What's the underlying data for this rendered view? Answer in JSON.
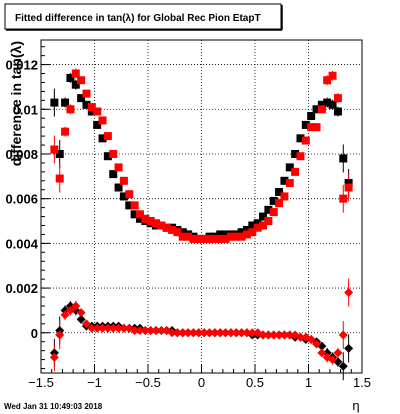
{
  "chart_data": {
    "type": "scatter",
    "title": "Fitted difference in tan(λ) for Global Rec Pion EtapT",
    "xlabel": "η",
    "ylabel": "difference in tan(λ)",
    "xlim": [
      -1.5,
      1.5
    ],
    "ylim": [
      -0.0018,
      0.0131
    ],
    "grid": true,
    "x_ticks": [
      -1.5,
      -1,
      -0.5,
      0,
      0.5,
      1,
      1.5
    ],
    "x_tick_labels": [
      "−1.5",
      "−1",
      "−0.5",
      "0",
      "0.5",
      "1",
      "1.5"
    ],
    "y_ticks": [
      0,
      0.002,
      0.004,
      0.006,
      0.008,
      0.01,
      0.012
    ],
    "y_tick_labels": [
      "0",
      "0.002",
      "0.004",
      "0.006",
      "0.008",
      "0.01",
      "0.012"
    ],
    "timestamp": "Wed Jan 31 10:49:03 2018",
    "colors": {
      "series_black": "#000000",
      "series_red": "#ff0000"
    },
    "series": [
      {
        "color": "#000000",
        "marker": "square",
        "points": [
          [
            -1.375,
            0.0103
          ],
          [
            -1.325,
            0.008
          ],
          [
            -1.275,
            0.0103
          ],
          [
            -1.225,
            0.0114
          ],
          [
            -1.175,
            0.0111
          ],
          [
            -1.125,
            0.0105
          ],
          [
            -1.075,
            0.0102
          ],
          [
            -1.025,
            0.0099
          ],
          [
            -0.975,
            0.0093
          ],
          [
            -0.925,
            0.0087
          ],
          [
            -0.875,
            0.0079
          ],
          [
            -0.825,
            0.0071
          ],
          [
            -0.775,
            0.0065
          ],
          [
            -0.725,
            0.0061
          ],
          [
            -0.675,
            0.0057
          ],
          [
            -0.625,
            0.0053
          ],
          [
            -0.575,
            0.0051
          ],
          [
            -0.525,
            0.005
          ],
          [
            -0.475,
            0.0049
          ],
          [
            -0.425,
            0.0048
          ],
          [
            -0.375,
            0.0048
          ],
          [
            -0.325,
            0.0047
          ],
          [
            -0.275,
            0.0047
          ],
          [
            -0.225,
            0.0046
          ],
          [
            -0.175,
            0.0045
          ],
          [
            -0.125,
            0.0044
          ],
          [
            -0.075,
            0.0043
          ],
          [
            -0.025,
            0.0042
          ],
          [
            0.025,
            0.0042
          ],
          [
            0.075,
            0.0043
          ],
          [
            0.125,
            0.0043
          ],
          [
            0.175,
            0.0044
          ],
          [
            0.225,
            0.0044
          ],
          [
            0.275,
            0.0044
          ],
          [
            0.325,
            0.0044
          ],
          [
            0.375,
            0.0045
          ],
          [
            0.425,
            0.0046
          ],
          [
            0.475,
            0.0048
          ],
          [
            0.525,
            0.0049
          ],
          [
            0.575,
            0.0052
          ],
          [
            0.625,
            0.0055
          ],
          [
            0.675,
            0.0059
          ],
          [
            0.725,
            0.0063
          ],
          [
            0.775,
            0.0068
          ],
          [
            0.825,
            0.0074
          ],
          [
            0.875,
            0.008
          ],
          [
            0.925,
            0.0087
          ],
          [
            0.975,
            0.0093
          ],
          [
            1.025,
            0.0097
          ],
          [
            1.075,
            0.01
          ],
          [
            1.125,
            0.0102
          ],
          [
            1.175,
            0.0103
          ],
          [
            1.225,
            0.0102
          ],
          [
            1.275,
            0.0099
          ],
          [
            1.325,
            0.0078
          ],
          [
            1.375,
            0.0067
          ]
        ]
      },
      {
        "color": "#ff0000",
        "marker": "square",
        "points": [
          [
            -1.375,
            0.0082
          ],
          [
            -1.325,
            0.0069
          ],
          [
            -1.275,
            0.009
          ],
          [
            -1.225,
            0.01
          ],
          [
            -1.175,
            0.0116
          ],
          [
            -1.125,
            0.0113
          ],
          [
            -1.075,
            0.0107
          ],
          [
            -1.025,
            0.0101
          ],
          [
            -0.975,
            0.0099
          ],
          [
            -0.925,
            0.0095
          ],
          [
            -0.875,
            0.0088
          ],
          [
            -0.825,
            0.008
          ],
          [
            -0.775,
            0.0074
          ],
          [
            -0.725,
            0.0068
          ],
          [
            -0.675,
            0.0062
          ],
          [
            -0.625,
            0.0057
          ],
          [
            -0.575,
            0.0053
          ],
          [
            -0.525,
            0.0051
          ],
          [
            -0.475,
            0.005
          ],
          [
            -0.425,
            0.0049
          ],
          [
            -0.375,
            0.0048
          ],
          [
            -0.325,
            0.0047
          ],
          [
            -0.275,
            0.0046
          ],
          [
            -0.225,
            0.0045
          ],
          [
            -0.175,
            0.0043
          ],
          [
            -0.125,
            0.0043
          ],
          [
            -0.075,
            0.0042
          ],
          [
            -0.025,
            0.0042
          ],
          [
            0.025,
            0.0042
          ],
          [
            0.075,
            0.0042
          ],
          [
            0.125,
            0.0042
          ],
          [
            0.175,
            0.0042
          ],
          [
            0.225,
            0.0042
          ],
          [
            0.275,
            0.0043
          ],
          [
            0.325,
            0.0043
          ],
          [
            0.375,
            0.0043
          ],
          [
            0.425,
            0.0044
          ],
          [
            0.475,
            0.0045
          ],
          [
            0.525,
            0.0047
          ],
          [
            0.575,
            0.0048
          ],
          [
            0.625,
            0.005
          ],
          [
            0.675,
            0.0054
          ],
          [
            0.725,
            0.0058
          ],
          [
            0.775,
            0.0061
          ],
          [
            0.825,
            0.0067
          ],
          [
            0.875,
            0.0072
          ],
          [
            0.925,
            0.0079
          ],
          [
            0.975,
            0.0086
          ],
          [
            1.025,
            0.0092
          ],
          [
            1.075,
            0.0092
          ],
          [
            1.125,
            0.01
          ],
          [
            1.175,
            0.0113
          ],
          [
            1.225,
            0.0115
          ],
          [
            1.275,
            0.0105
          ],
          [
            1.325,
            0.006
          ],
          [
            1.375,
            0.0065
          ]
        ]
      },
      {
        "color": "#000000",
        "marker": "diamond",
        "points": [
          [
            -1.375,
            -0.0009
          ],
          [
            -1.325,
            0.0001
          ],
          [
            -1.275,
            0.001
          ],
          [
            -1.225,
            0.0012
          ],
          [
            -1.175,
            0.001
          ],
          [
            -1.125,
            0.0006
          ],
          [
            -1.075,
            0.0003
          ],
          [
            -1.025,
            0.0003
          ],
          [
            -0.975,
            0.0003
          ],
          [
            -0.925,
            0.0003
          ],
          [
            -0.875,
            0.0003
          ],
          [
            -0.825,
            0.0003
          ],
          [
            -0.775,
            0.0003
          ],
          [
            -0.725,
            0.0002
          ],
          [
            -0.675,
            0.0002
          ],
          [
            -0.625,
            0.0002
          ],
          [
            -0.575,
            0.0002
          ],
          [
            -0.525,
            0.0001
          ],
          [
            -0.475,
            0.0001
          ],
          [
            -0.425,
            0.0001
          ],
          [
            -0.375,
            0.0001
          ],
          [
            -0.325,
            0.0001
          ],
          [
            -0.275,
            0.0001
          ],
          [
            -0.225,
            0.0
          ],
          [
            -0.175,
            0.0
          ],
          [
            -0.125,
            0.0
          ],
          [
            -0.075,
            0.0
          ],
          [
            -0.025,
            0.0
          ],
          [
            0.025,
            0.0
          ],
          [
            0.075,
            0.0
          ],
          [
            0.125,
            0.0
          ],
          [
            0.175,
            0.0
          ],
          [
            0.225,
            0.0
          ],
          [
            0.275,
            0.0
          ],
          [
            0.325,
            0.0
          ],
          [
            0.375,
            0.0
          ],
          [
            0.425,
            0.0
          ],
          [
            0.475,
            -0.0001
          ],
          [
            0.525,
            -0.0001
          ],
          [
            0.575,
            -0.0001
          ],
          [
            0.625,
            -0.0001
          ],
          [
            0.675,
            -0.0001
          ],
          [
            0.725,
            -0.0001
          ],
          [
            0.775,
            -0.0001
          ],
          [
            0.825,
            -0.0001
          ],
          [
            0.875,
            -0.0002
          ],
          [
            0.925,
            -0.0002
          ],
          [
            0.975,
            -0.0003
          ],
          [
            1.025,
            -0.0003
          ],
          [
            1.075,
            -0.0004
          ],
          [
            1.125,
            -0.0006
          ],
          [
            1.175,
            -0.0009
          ],
          [
            1.225,
            -0.0011
          ],
          [
            1.275,
            -0.0013
          ],
          [
            1.325,
            -0.0015
          ],
          [
            1.375,
            -0.0007
          ]
        ]
      },
      {
        "color": "#ff0000",
        "marker": "diamond",
        "points": [
          [
            -1.375,
            -0.0011
          ],
          [
            -1.325,
            -0.0001
          ],
          [
            -1.275,
            0.0008
          ],
          [
            -1.225,
            0.001
          ],
          [
            -1.175,
            0.0012
          ],
          [
            -1.125,
            0.0009
          ],
          [
            -1.075,
            0.0004
          ],
          [
            -1.025,
            0.0002
          ],
          [
            -0.975,
            0.0002
          ],
          [
            -0.925,
            0.0002
          ],
          [
            -0.875,
            0.0002
          ],
          [
            -0.825,
            0.0002
          ],
          [
            -0.775,
            0.0002
          ],
          [
            -0.725,
            0.0002
          ],
          [
            -0.675,
            0.0002
          ],
          [
            -0.625,
            0.0001
          ],
          [
            -0.575,
            0.0001
          ],
          [
            -0.525,
            0.0001
          ],
          [
            -0.475,
            0.0001
          ],
          [
            -0.425,
            0.0001
          ],
          [
            -0.375,
            0.0001
          ],
          [
            -0.325,
            0.0001
          ],
          [
            -0.275,
            0.0
          ],
          [
            -0.225,
            0.0
          ],
          [
            -0.175,
            0.0
          ],
          [
            -0.125,
            0.0
          ],
          [
            -0.075,
            0.0
          ],
          [
            -0.025,
            0.0
          ],
          [
            0.025,
            0.0
          ],
          [
            0.075,
            0.0
          ],
          [
            0.125,
            0.0
          ],
          [
            0.175,
            0.0
          ],
          [
            0.225,
            0.0
          ],
          [
            0.275,
            0.0
          ],
          [
            0.325,
            0.0
          ],
          [
            0.375,
            0.0
          ],
          [
            0.425,
            0.0
          ],
          [
            0.475,
            0.0
          ],
          [
            0.525,
            0.0
          ],
          [
            0.575,
            -0.0001
          ],
          [
            0.625,
            -0.0001
          ],
          [
            0.675,
            -0.0001
          ],
          [
            0.725,
            -0.0001
          ],
          [
            0.775,
            -0.0001
          ],
          [
            0.825,
            -0.0001
          ],
          [
            0.875,
            -0.0001
          ],
          [
            0.925,
            -0.0002
          ],
          [
            0.975,
            -0.0002
          ],
          [
            1.025,
            -0.0003
          ],
          [
            1.075,
            -0.0005
          ],
          [
            1.125,
            -0.0009
          ],
          [
            1.175,
            -0.0011
          ],
          [
            1.225,
            -0.0012
          ],
          [
            1.275,
            -0.0009
          ],
          [
            1.325,
            -0.0001
          ],
          [
            1.375,
            0.0018
          ]
        ]
      }
    ]
  }
}
